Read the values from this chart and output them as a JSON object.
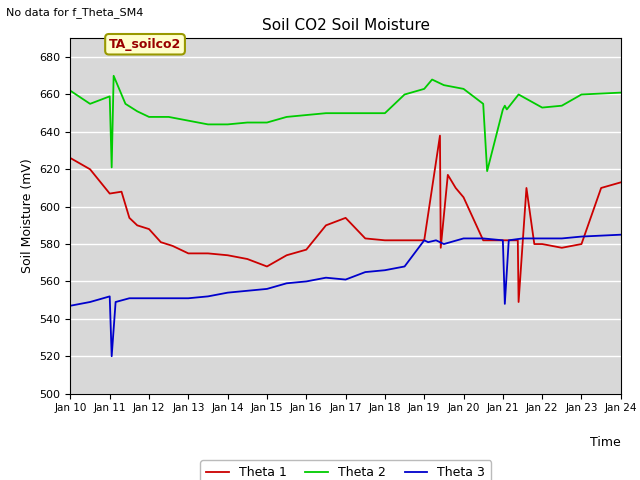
{
  "title": "Soil CO2 Soil Moisture",
  "xlabel": "Time",
  "ylabel": "Soil Moisture (mV)",
  "ylim": [
    500,
    690
  ],
  "yticks": [
    500,
    520,
    540,
    560,
    580,
    600,
    620,
    640,
    660,
    680
  ],
  "top_left_text": "No data for f_Theta_SM4",
  "annotation_box": "TA_soilco2",
  "figure_bg": "#ffffff",
  "plot_bg_color": "#d8d8d8",
  "grid_color": "white",
  "xtick_labels": [
    "Jan 10",
    "Jan 11",
    "Jan 12",
    "Jan 13",
    "Jan 14",
    "Jan 15",
    "Jan 16",
    "Jan 17",
    "Jan 18",
    "Jan 19",
    "Jan 20",
    "Jan 21",
    "Jan 22",
    "Jan 23",
    "Jan 24"
  ],
  "theta1_x": [
    0,
    0.5,
    1.0,
    1.3,
    1.5,
    1.7,
    2.0,
    2.3,
    2.6,
    3.0,
    3.5,
    4.0,
    4.5,
    5.0,
    5.5,
    6.0,
    6.5,
    7.0,
    7.5,
    8.0,
    8.5,
    9.0,
    9.4,
    9.42,
    9.6,
    9.8,
    10.0,
    10.5,
    11.0,
    11.38,
    11.4,
    11.6,
    11.8,
    12.0,
    12.5,
    13.0,
    13.5,
    14.0
  ],
  "theta1_y": [
    626,
    620,
    607,
    608,
    594,
    590,
    588,
    581,
    579,
    575,
    575,
    574,
    572,
    568,
    574,
    577,
    590,
    594,
    583,
    582,
    582,
    582,
    638,
    578,
    617,
    610,
    605,
    582,
    582,
    582,
    549,
    610,
    580,
    580,
    578,
    580,
    610,
    613
  ],
  "theta2_x": [
    0,
    0.5,
    1.0,
    1.05,
    1.1,
    1.4,
    1.7,
    2.0,
    2.5,
    3.0,
    3.5,
    4.0,
    4.5,
    5.0,
    5.5,
    6.0,
    6.5,
    7.0,
    7.5,
    8.0,
    8.5,
    9.0,
    9.2,
    9.5,
    10.0,
    10.5,
    10.6,
    11.0,
    11.05,
    11.1,
    11.4,
    12.0,
    12.5,
    13.0,
    14.0
  ],
  "theta2_y": [
    662,
    655,
    659,
    621,
    670,
    655,
    651,
    648,
    648,
    646,
    644,
    644,
    645,
    645,
    648,
    649,
    650,
    650,
    650,
    650,
    660,
    663,
    668,
    665,
    663,
    655,
    619,
    652,
    654,
    652,
    660,
    653,
    654,
    660,
    661
  ],
  "theta3_x": [
    0,
    0.5,
    1.0,
    1.05,
    1.15,
    1.5,
    2.0,
    2.5,
    3.0,
    3.5,
    4.0,
    4.5,
    5.0,
    5.5,
    6.0,
    6.5,
    7.0,
    7.5,
    8.0,
    8.5,
    9.0,
    9.1,
    9.3,
    9.5,
    10.0,
    10.5,
    11.0,
    11.05,
    11.15,
    11.5,
    12.0,
    12.5,
    13.0,
    14.0
  ],
  "theta3_y": [
    547,
    549,
    552,
    520,
    549,
    551,
    551,
    551,
    551,
    552,
    554,
    555,
    556,
    559,
    560,
    562,
    561,
    565,
    566,
    568,
    582,
    581,
    582,
    580,
    583,
    583,
    582,
    548,
    582,
    583,
    583,
    583,
    584,
    585
  ],
  "theta1_color": "#cc0000",
  "theta2_color": "#00cc00",
  "theta3_color": "#0000cc",
  "legend_entries": [
    "Theta 1",
    "Theta 2",
    "Theta 3"
  ]
}
